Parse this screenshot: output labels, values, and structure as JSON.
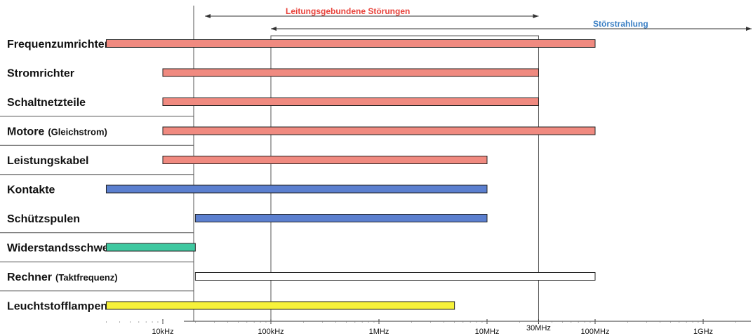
{
  "chart_data": {
    "type": "bar",
    "orientation": "horizontal-range",
    "x_scale": "log",
    "x_unit": "Hz",
    "xlim": [
      3000,
      3000000000
    ],
    "grid": false,
    "bands": [
      {
        "label": "Leitungsgebundene Störungen",
        "from": 3000,
        "to": 30000000,
        "color": "#e8423a"
      },
      {
        "label": "Störstrahlung",
        "from": 100000,
        "to": 3000000000,
        "color": "#3a7fc4"
      }
    ],
    "ticks": [
      {
        "value": 10000,
        "label": "10kHz"
      },
      {
        "value": 100000,
        "label": "100kHz"
      },
      {
        "value": 1000000,
        "label": "1MHz"
      },
      {
        "value": 10000000,
        "label": "10MHz"
      },
      {
        "value": 30000000,
        "label": "30MHz"
      },
      {
        "value": 100000000,
        "label": "100MHz"
      },
      {
        "value": 1000000000,
        "label": "1GHz"
      }
    ],
    "rows": [
      {
        "label": "Frequenzumrichter",
        "note": "",
        "from": 3000,
        "to": 100000000,
        "color": "#f08a80"
      },
      {
        "label": "Stromrichter",
        "note": "",
        "from": 10000,
        "to": 30000000,
        "color": "#f08a80"
      },
      {
        "label": "Schaltnetzteile",
        "note": "",
        "from": 10000,
        "to": 30000000,
        "color": "#f08a80"
      },
      {
        "label": "Motore",
        "note": "(Gleichstrom)",
        "from": 10000,
        "to": 100000000,
        "color": "#f08a80"
      },
      {
        "label": "Leistungskabel",
        "note": "",
        "from": 10000,
        "to": 10000000,
        "color": "#f08a80"
      },
      {
        "label": "Kontakte",
        "note": "",
        "from": 3000,
        "to": 10000000,
        "color": "#5b7fcf"
      },
      {
        "label": "Schützspulen",
        "note": "",
        "from": 20000,
        "to": 10000000,
        "color": "#5b7fcf"
      },
      {
        "label": "Widerstandsschweißen",
        "note": "",
        "from": 3000,
        "to": 20000,
        "color": "#3fc8a0"
      },
      {
        "label": "Rechner",
        "note": "(Taktfrequenz)",
        "from": 20000,
        "to": 100000000,
        "color": "#ffffff"
      },
      {
        "label": "Leuchtstofflampen",
        "note": "",
        "from": 3000,
        "to": 5000000,
        "color": "#f7f23a"
      }
    ],
    "row_dividers_after": [
      2,
      3,
      4,
      6,
      7,
      8
    ]
  }
}
